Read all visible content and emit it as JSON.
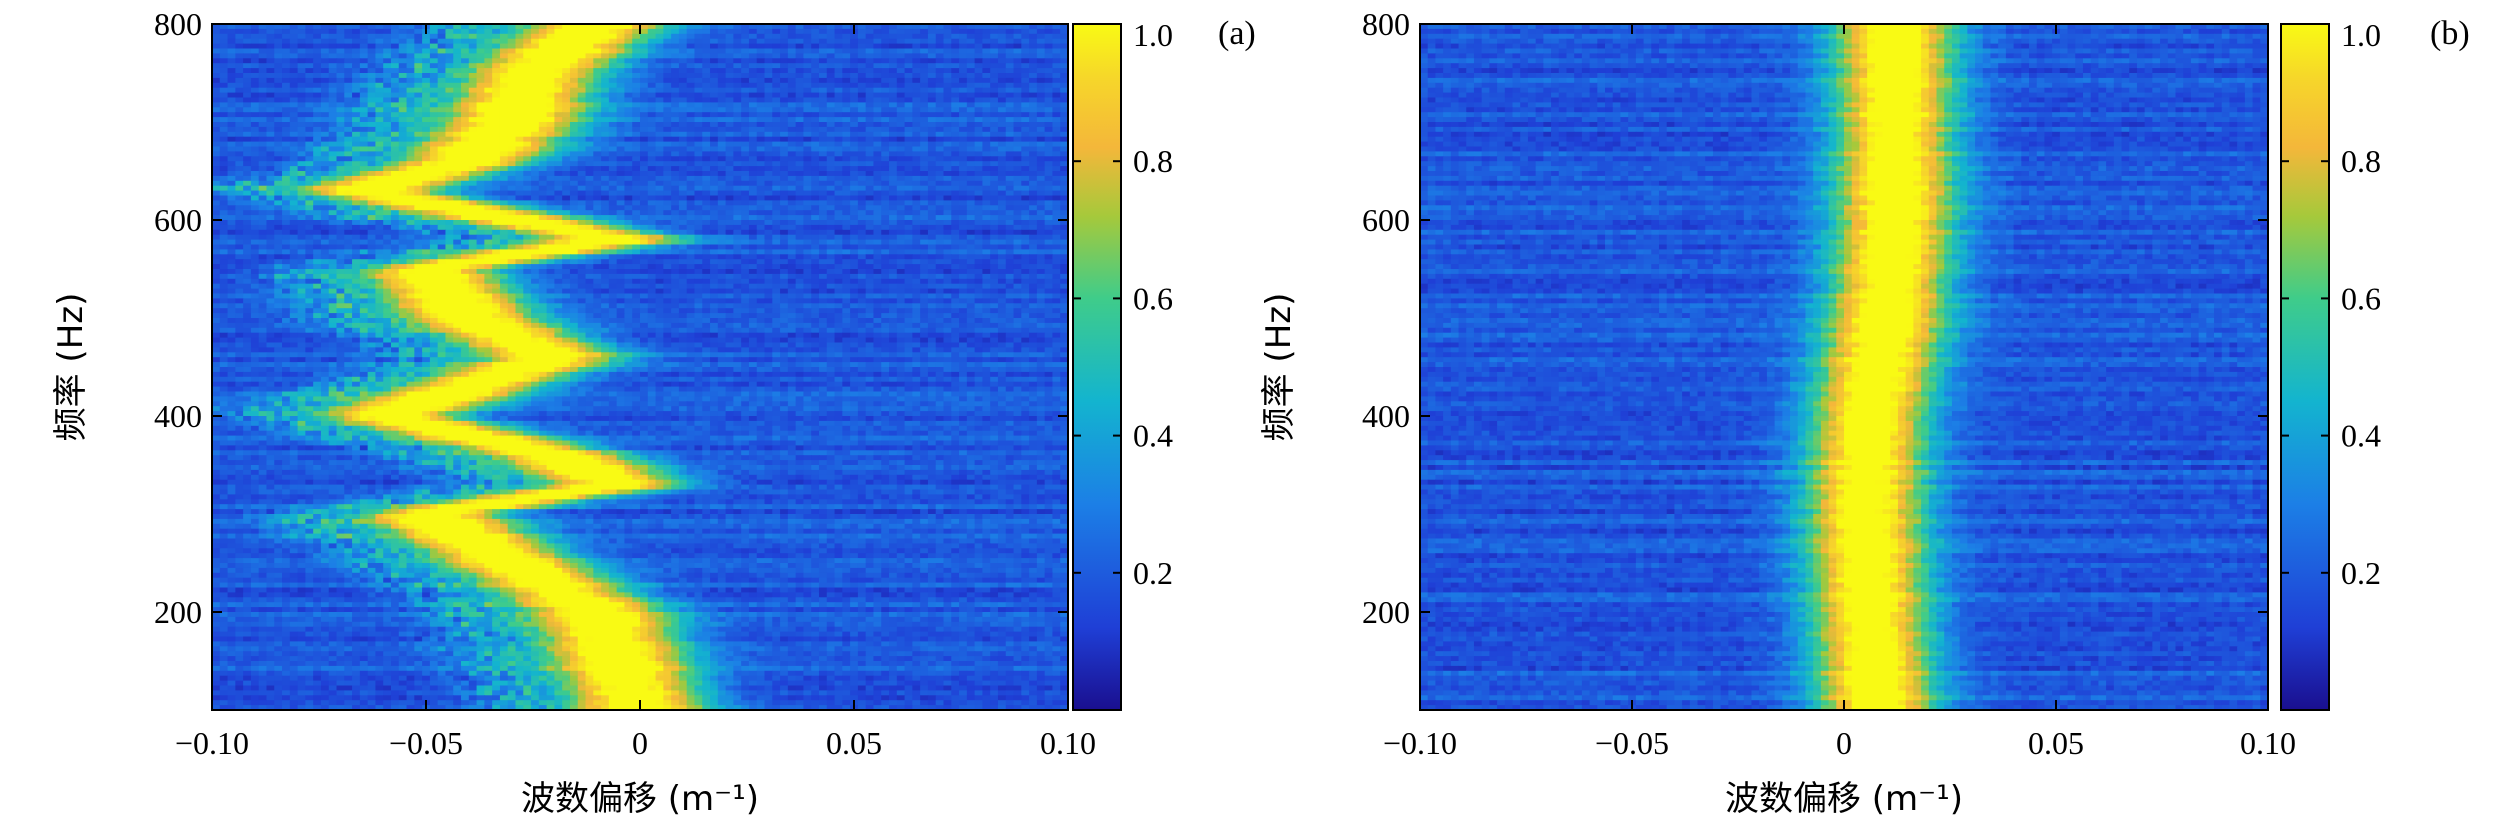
{
  "chart_data": [
    {
      "type": "heatmap",
      "panel_label": "(a)",
      "xlabel": "波数偏移 (m⁻¹)",
      "ylabel": "频率 (Hz)",
      "xlim": [
        -0.1,
        0.1
      ],
      "ylim": [
        100,
        800
      ],
      "x_ticks": [
        -0.1,
        -0.05,
        0,
        0.05,
        0.1
      ],
      "x_tick_labels": [
        "−0.10",
        "−0.05",
        "0",
        "0.05",
        "0.10"
      ],
      "y_ticks": [
        200,
        400,
        600,
        800
      ],
      "y_tick_labels": [
        "200",
        "400",
        "600",
        "800"
      ],
      "colorbar": {
        "range": [
          0,
          1
        ],
        "ticks": [
          0.2,
          0.4,
          0.6,
          0.8,
          1.0
        ],
        "tick_labels": [
          "0.2",
          "0.4",
          "0.6",
          "0.8",
          "1.0"
        ]
      },
      "ridge": [
        {
          "f": 100,
          "k": 0.0
        },
        {
          "f": 150,
          "k": -0.005
        },
        {
          "f": 200,
          "k": -0.01
        },
        {
          "f": 250,
          "k": -0.03
        },
        {
          "f": 300,
          "k": -0.05
        },
        {
          "f": 330,
          "k": -0.005
        },
        {
          "f": 360,
          "k": -0.02
        },
        {
          "f": 400,
          "k": -0.06
        },
        {
          "f": 430,
          "k": -0.04
        },
        {
          "f": 460,
          "k": -0.02
        },
        {
          "f": 500,
          "k": -0.04
        },
        {
          "f": 550,
          "k": -0.05
        },
        {
          "f": 580,
          "k": -0.005
        },
        {
          "f": 630,
          "k": -0.065
        },
        {
          "f": 660,
          "k": -0.04
        },
        {
          "f": 700,
          "k": -0.03
        },
        {
          "f": 750,
          "k": -0.025
        },
        {
          "f": 800,
          "k": -0.01
        }
      ],
      "ridge_width": 0.012
    },
    {
      "type": "heatmap",
      "panel_label": "(b)",
      "xlabel": "波数偏移 (m⁻¹)",
      "ylabel": "频率 (Hz)",
      "xlim": [
        -0.1,
        0.1
      ],
      "ylim": [
        100,
        800
      ],
      "x_ticks": [
        -0.1,
        -0.05,
        0,
        0.05,
        0.1
      ],
      "x_tick_labels": [
        "−0.10",
        "−0.05",
        "0",
        "0.05",
        "0.10"
      ],
      "y_ticks": [
        200,
        400,
        600,
        800
      ],
      "y_tick_labels": [
        "200",
        "400",
        "600",
        "800"
      ],
      "colorbar": {
        "range": [
          0,
          1
        ],
        "ticks": [
          0.2,
          0.4,
          0.6,
          0.8,
          1.0
        ],
        "tick_labels": [
          "0.2",
          "0.4",
          "0.6",
          "0.8",
          "1.0"
        ]
      },
      "ridge": [
        {
          "f": 100,
          "k": 0.008
        },
        {
          "f": 200,
          "k": 0.006
        },
        {
          "f": 300,
          "k": 0.005
        },
        {
          "f": 400,
          "k": 0.006
        },
        {
          "f": 500,
          "k": 0.01
        },
        {
          "f": 600,
          "k": 0.012
        },
        {
          "f": 700,
          "k": 0.012
        },
        {
          "f": 800,
          "k": 0.012
        }
      ],
      "ridge_width": 0.01
    }
  ]
}
